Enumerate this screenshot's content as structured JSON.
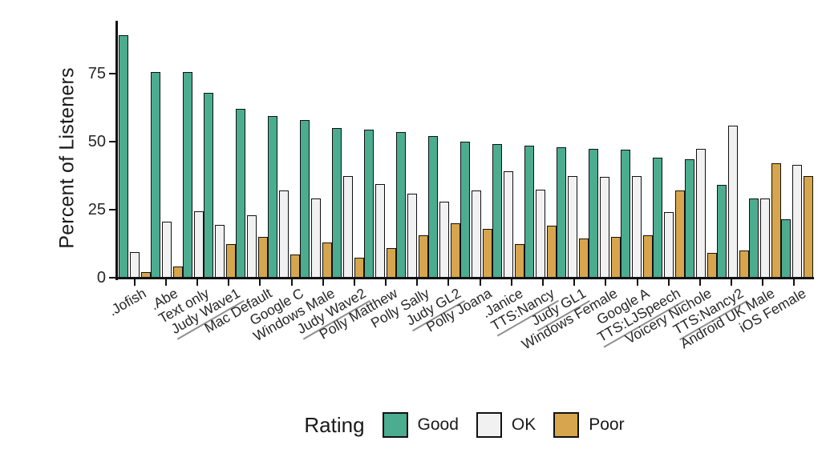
{
  "figure": {
    "ylabel": "Percent of Listeners",
    "background": "#ffffff",
    "axis_color": "#111111",
    "underline_color": "#8f8f8f"
  },
  "chart_data": {
    "type": "bar",
    "title": "",
    "xlabel": "",
    "ylabel": "Percent of Listeners",
    "legend_title": "Rating",
    "legend_position": "bottom",
    "grid": false,
    "ylim": [
      0,
      93
    ],
    "yticks": [
      0,
      25,
      50,
      75
    ],
    "categories": [
      ".Jofish",
      ".Abe",
      "Text only",
      "Judy Wave1",
      "Mac Default",
      "Google C",
      "Windows Male",
      "Judy Wave2",
      "Polly Matthew",
      "Polly Sally",
      "Judy GL2",
      "Polly Joana",
      ".Janice",
      "TTS:Nancy",
      "Judy GL1",
      "Windows Female",
      "Google A",
      "TTS:LJSpeech",
      "Voicery Nichole",
      "TTS:Nancy2",
      "Android UK Male",
      "iOS Female"
    ],
    "underlined_categories": [
      "Judy Wave1",
      "Judy Wave2",
      "Judy GL2",
      "TTS:Nancy",
      "Judy GL1",
      "TTS:LJSpeech",
      "TTS:Nancy2"
    ],
    "series": [
      {
        "name": "Good",
        "color": "#4BAC90",
        "values": [
          89,
          75.5,
          75.5,
          68,
          62,
          59.5,
          58,
          55,
          54.5,
          53.5,
          52,
          50,
          49,
          48.5,
          48,
          47.5,
          47,
          44,
          43.5,
          34,
          29,
          21.5
        ]
      },
      {
        "name": "OK",
        "color": "#F2F1F2",
        "values": [
          9.5,
          20.5,
          24.5,
          19.5,
          23,
          32,
          29,
          37.5,
          34.5,
          31,
          28,
          32,
          39,
          32.5,
          37.5,
          37,
          37.5,
          24,
          47.5,
          56,
          29,
          41.5
        ]
      },
      {
        "name": "Poor",
        "color": "#D6A54D",
        "values": [
          2,
          4,
          0,
          12.5,
          15,
          8.5,
          13,
          7.5,
          11,
          15.5,
          20,
          18,
          12.5,
          19,
          14.5,
          15,
          15.5,
          32,
          9,
          10,
          42,
          37.5
        ]
      }
    ]
  }
}
